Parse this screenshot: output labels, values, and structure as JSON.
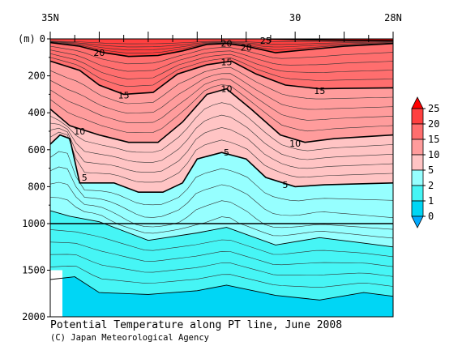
{
  "chart_data": {
    "type": "contour-section",
    "title": "Potential Temperature along PT line, June 2008",
    "credit": "(C) Japan Meteorological Agency",
    "ylabel": "(m)",
    "x_ticks": [
      {
        "value": 35,
        "label": "35N"
      },
      {
        "value": 30,
        "label": "30"
      },
      {
        "value": 28,
        "label": "28N"
      }
    ],
    "xlim": [
      35,
      28
    ],
    "y_ticks_upper": [
      0,
      200,
      400,
      600,
      800,
      1000
    ],
    "y_ticks_lower": [
      1500,
      2000
    ],
    "ylim_upper": [
      0,
      1000
    ],
    "ylim_lower": [
      1000,
      2000
    ],
    "colorbar": {
      "levels": [
        "25",
        "20",
        "15",
        "10",
        "5",
        "2",
        "1",
        "0"
      ],
      "colors": [
        "#ff0000",
        "#ff4040",
        "#ff6e6e",
        "#ff9c9c",
        "#ffc4c4",
        "#96ffff",
        "#46f5f5",
        "#00d6f5",
        "#00aaff"
      ]
    },
    "contour_labels": [
      {
        "text": "25",
        "lat": 30.6,
        "depth": 8
      },
      {
        "text": "20",
        "lat": 34.0,
        "depth": 75
      },
      {
        "text": "20",
        "lat": 31.4,
        "depth": 25
      },
      {
        "text": "20",
        "lat": 31.0,
        "depth": 45
      },
      {
        "text": "15",
        "lat": 33.5,
        "depth": 305
      },
      {
        "text": "15",
        "lat": 31.4,
        "depth": 125
      },
      {
        "text": "15",
        "lat": 29.5,
        "depth": 280
      },
      {
        "text": "10",
        "lat": 34.4,
        "depth": 500
      },
      {
        "text": "10",
        "lat": 31.4,
        "depth": 270
      },
      {
        "text": "10",
        "lat": 30.0,
        "depth": 565
      },
      {
        "text": "5",
        "lat": 34.3,
        "depth": 750
      },
      {
        "text": "5",
        "lat": 31.4,
        "depth": 615
      },
      {
        "text": "5",
        "lat": 30.2,
        "depth": 790
      }
    ],
    "isotherms": [
      {
        "value": 25,
        "points": [
          [
            30.6,
            0
          ],
          [
            29.8,
            5
          ],
          [
            28.9,
            8
          ],
          [
            28.0,
            10
          ]
        ]
      },
      {
        "value": 20,
        "points": [
          [
            35.0,
            20
          ],
          [
            34.4,
            40
          ],
          [
            33.9,
            75
          ],
          [
            33.4,
            95
          ],
          [
            32.8,
            90
          ],
          [
            32.3,
            65
          ],
          [
            31.8,
            30
          ],
          [
            31.4,
            25
          ],
          [
            31.0,
            40
          ],
          [
            30.4,
            75
          ],
          [
            29.6,
            55
          ],
          [
            29.0,
            40
          ],
          [
            28.0,
            25
          ]
        ]
      },
      {
        "value": 15,
        "points": [
          [
            35.0,
            120
          ],
          [
            34.4,
            170
          ],
          [
            34.0,
            250
          ],
          [
            33.5,
            300
          ],
          [
            32.9,
            290
          ],
          [
            32.4,
            190
          ],
          [
            31.8,
            140
          ],
          [
            31.3,
            120
          ],
          [
            30.8,
            190
          ],
          [
            30.2,
            250
          ],
          [
            29.5,
            270
          ],
          [
            29.0,
            268
          ],
          [
            28.0,
            265
          ]
        ]
      },
      {
        "value": 10,
        "points": [
          [
            35.0,
            380
          ],
          [
            34.6,
            470
          ],
          [
            34.0,
            520
          ],
          [
            33.4,
            560
          ],
          [
            32.8,
            560
          ],
          [
            32.3,
            450
          ],
          [
            31.8,
            300
          ],
          [
            31.4,
            270
          ],
          [
            30.9,
            380
          ],
          [
            30.3,
            520
          ],
          [
            29.8,
            560
          ],
          [
            29.2,
            540
          ],
          [
            28.0,
            520
          ]
        ]
      },
      {
        "value": 5,
        "points": [
          [
            35.0,
            570
          ],
          [
            34.8,
            520
          ],
          [
            34.6,
            540
          ],
          [
            34.4,
            780
          ],
          [
            33.7,
            780
          ],
          [
            33.2,
            830
          ],
          [
            32.7,
            830
          ],
          [
            32.3,
            780
          ],
          [
            32.0,
            650
          ],
          [
            31.5,
            615
          ],
          [
            31.0,
            650
          ],
          [
            30.6,
            750
          ],
          [
            30.0,
            800
          ],
          [
            29.4,
            790
          ],
          [
            28.0,
            780
          ]
        ]
      },
      {
        "value": 2,
        "points": [
          [
            35.0,
            930
          ],
          [
            34.6,
            960
          ],
          [
            34.0,
            990
          ],
          [
            33.0,
            1180
          ],
          [
            32.0,
            1100
          ],
          [
            31.4,
            1040
          ],
          [
            30.4,
            1230
          ],
          [
            29.5,
            1150
          ],
          [
            28.6,
            1210
          ],
          [
            28.0,
            1250
          ]
        ]
      },
      {
        "value": 1,
        "points": [
          [
            35.0,
            1600
          ],
          [
            34.5,
            1570
          ],
          [
            34.0,
            1740
          ],
          [
            33.0,
            1760
          ],
          [
            32.0,
            1720
          ],
          [
            31.4,
            1660
          ],
          [
            30.4,
            1770
          ],
          [
            29.5,
            1820
          ],
          [
            28.6,
            1740
          ],
          [
            28.0,
            1780
          ]
        ]
      }
    ]
  }
}
